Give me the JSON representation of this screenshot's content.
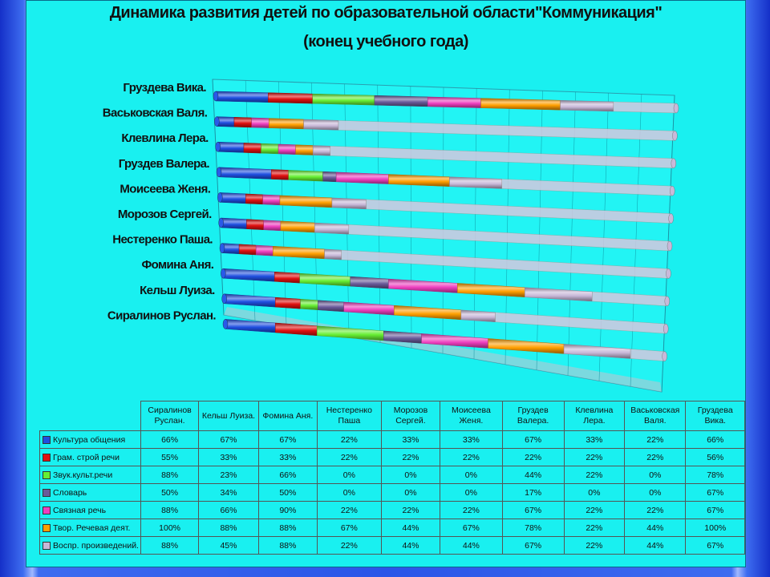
{
  "title_line1": "Динамика развития детей по образовательной области\"Коммуникация\"",
  "title_line2": "(конец  учебного года)",
  "chart_data": {
    "type": "bar",
    "stacked": true,
    "orientation": "horizontal",
    "categories": [
      "Сиралинов Руслан.",
      "Кельш Луиза.",
      "Фомина Аня.",
      "Нестеренко Паша.",
      "Морозов Сергей.",
      "Моисеева Женя.",
      "Груздев Валера.",
      "Клевлина Лера.",
      "Васьковская Валя.",
      "Груздева  Вика."
    ],
    "table_headers": [
      "Сиралинов Руслан.",
      "Кельш Луиза.",
      "Фомина Аня.",
      "Нестеренко Паша",
      "Морозов Сергей.",
      "Моисеева Женя.",
      "Груздев Валера.",
      "Клевлина Лера.",
      "Васьковская Валя.",
      "Груздева Вика."
    ],
    "axis_labels": [
      "Груздева  Вика.",
      "Васьковская Валя.",
      "Клевлина Лера.",
      "Груздев Валера.",
      "Моисеева Женя.",
      "Морозов Сергей.",
      "Нестеренко Паша.",
      "Фомина Аня.",
      "Кельш Луиза.",
      "Сиралинов Руслан."
    ],
    "series": [
      {
        "name": "Культура общения",
        "color": "#1f4fe0",
        "labels": [
          "66%",
          "67%",
          "67%",
          "22%",
          "33%",
          "33%",
          "67%",
          "33%",
          "22%",
          "66%"
        ],
        "values": [
          66,
          67,
          67,
          22,
          33,
          33,
          67,
          33,
          22,
          66
        ]
      },
      {
        "name": "Грам. строй речи",
        "color": "#e01010",
        "labels": [
          "55%",
          "33%",
          "33%",
          "22%",
          "22%",
          "22%",
          "22%",
          "22%",
          "22%",
          "56%"
        ],
        "values": [
          55,
          33,
          33,
          22,
          22,
          22,
          22,
          22,
          22,
          56
        ]
      },
      {
        "name": "Звук.культ.речи",
        "color": "#66ee33",
        "labels": [
          "88%",
          "23%",
          "66%",
          "0%",
          "0%",
          "0%",
          "44%",
          "22%",
          "0%",
          "78%"
        ],
        "values": [
          88,
          23,
          66,
          0,
          0,
          0,
          44,
          22,
          0,
          78
        ]
      },
      {
        "name": "Словарь",
        "color": "#6a5a9a",
        "labels": [
          "50%",
          "34%",
          "50%",
          "0%",
          "0%",
          "0%",
          "17%",
          "0%",
          "0%",
          "67%"
        ],
        "values": [
          50,
          34,
          50,
          0,
          0,
          0,
          17,
          0,
          0,
          67
        ]
      },
      {
        "name": "Связная речь",
        "color": "#ee3fbf",
        "labels": [
          "88%",
          "66%",
          "90%",
          "22%",
          "22%",
          "22%",
          "67%",
          "22%",
          "22%",
          "67%"
        ],
        "values": [
          88,
          66,
          90,
          22,
          22,
          22,
          67,
          22,
          22,
          67
        ]
      },
      {
        "name": "Твор. Речевая деят.",
        "color": "#ff9f00",
        "labels": [
          "100%",
          "88%",
          "88%",
          "67%",
          "44%",
          "67%",
          "78%",
          "22%",
          "44%",
          "100%"
        ],
        "values": [
          100,
          88,
          88,
          67,
          44,
          67,
          78,
          22,
          44,
          100
        ]
      },
      {
        "name": "Воспр. произведений.",
        "color": "#c8b8d8",
        "labels": [
          "88%",
          "45%",
          "88%",
          "22%",
          "44%",
          "44%",
          "67%",
          "22%",
          "44%",
          "67%"
        ],
        "values": [
          88,
          45,
          88,
          22,
          44,
          44,
          67,
          22,
          44,
          67
        ]
      }
    ]
  }
}
